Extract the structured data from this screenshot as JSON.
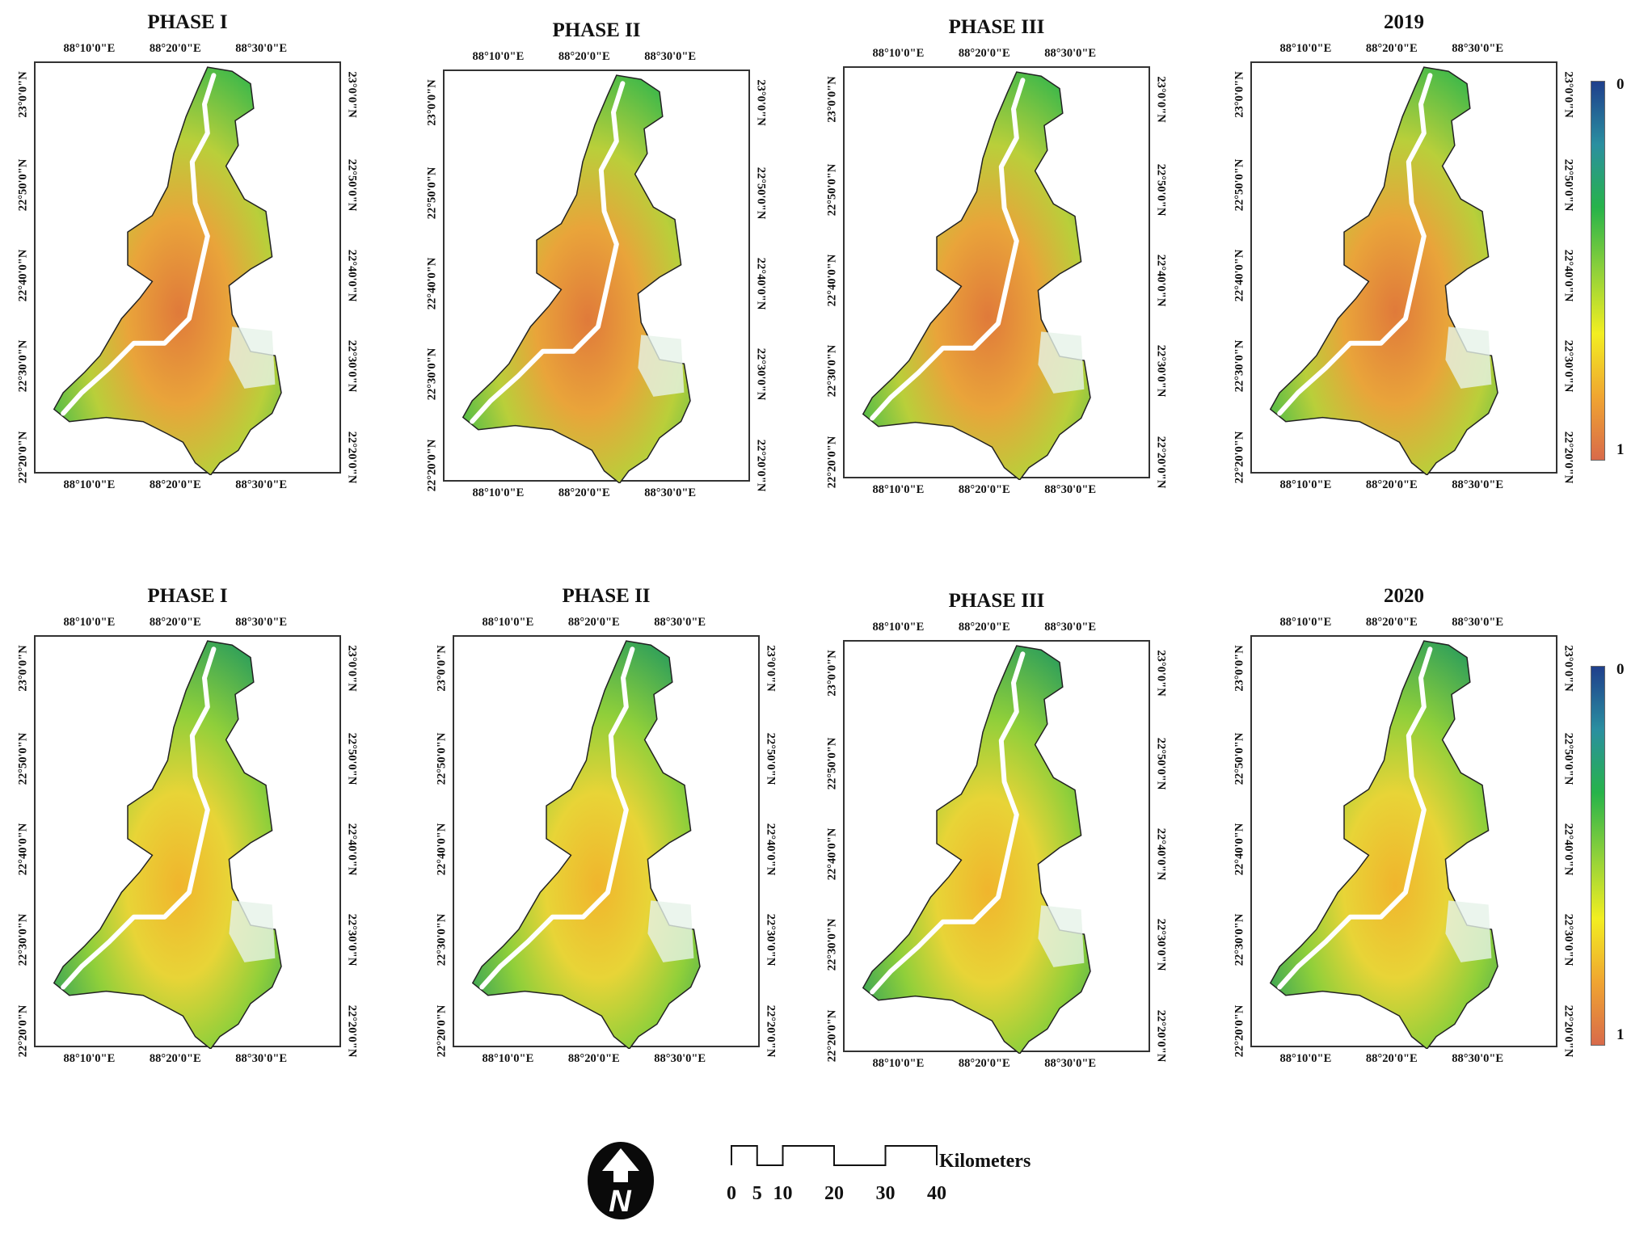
{
  "panels": [
    {
      "id": "top-phase1",
      "title": "PHASE I"
    },
    {
      "id": "top-phase2",
      "title": "PHASE II"
    },
    {
      "id": "top-phase3",
      "title": "PHASE III"
    },
    {
      "id": "top-2019",
      "title": "2019"
    },
    {
      "id": "bottom-phase1",
      "title": "PHASE I"
    },
    {
      "id": "bottom-phase2",
      "title": "PHASE II"
    },
    {
      "id": "bottom-phase3",
      "title": "PHASE III"
    },
    {
      "id": "bottom-2020",
      "title": "2020"
    }
  ],
  "longitude_labels": [
    "88°10'0\"E",
    "88°20'0\"E",
    "88°30'0\"E"
  ],
  "latitude_labels": [
    "23°0'0\"N",
    "22°50'0\"N",
    "22°40'0\"N",
    "22°30'0\"N",
    "22°20'0\"N"
  ],
  "legend": {
    "top_label": "0",
    "bottom_label": "1",
    "colors": [
      "#1f3f8c",
      "#2a8fa0",
      "#27b34a",
      "#8fd13a",
      "#f2ee21",
      "#f0a531",
      "#d86a4a"
    ]
  },
  "scale_bar": {
    "unit": "Kilometers",
    "ticks": [
      "0",
      "5",
      "10",
      "20",
      "30",
      "40"
    ],
    "tick_values": [
      0,
      5,
      10,
      20,
      30,
      40
    ]
  },
  "north_arrow": {
    "letter": "N",
    "icon": "north-arrow-icon"
  }
}
